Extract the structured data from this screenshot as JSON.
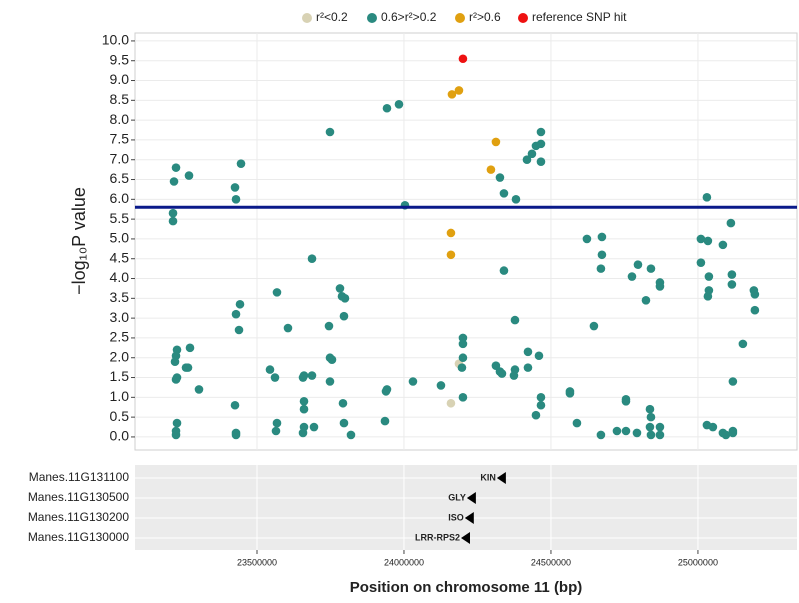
{
  "chart_data": {
    "type": "scatter",
    "x_label": "Position on chromosome 11 (bp)",
    "y_label": "−log₁₀P value",
    "xlim": [
      23085000,
      25337000
    ],
    "ylim": [
      -0.33,
      10.2
    ],
    "xticks": [
      23500000,
      24000000,
      24500000,
      25000000
    ],
    "yticks": [
      {
        "value": 0,
        "label": "0.0"
      },
      0.5,
      {
        "value": 1,
        "label": "1.0"
      },
      1.5,
      {
        "value": 2,
        "label": "2.0"
      },
      2.5,
      {
        "value": 3,
        "label": "3.0"
      },
      3.5,
      {
        "value": 4,
        "label": "4.0"
      },
      4.5,
      {
        "value": 5,
        "label": "5.0"
      },
      5.5,
      {
        "value": 6,
        "label": "6.0"
      },
      6.5,
      {
        "value": 7,
        "label": "7.0"
      },
      7.5,
      {
        "value": 8,
        "label": "8.0"
      },
      8.5,
      {
        "value": 9,
        "label": "9.0"
      },
      9.5,
      {
        "value": 10,
        "label": "10.0"
      }
    ],
    "grid": true,
    "legend": "top",
    "threshold": 5.8,
    "threshold_color": "#0a1a8a",
    "series": [
      {
        "name": "r²<0.2",
        "color": "#d8d2b4",
        "x": [
          24159800,
          24187000
        ],
        "values": [
          0.85,
          1.85
        ]
      },
      {
        "name": "0.6>r²>0.2",
        "color": "#2a8a80",
        "x": [
          23217700,
          23224500,
          23268700,
          23214300,
          23214300,
          23227900,
          23224500,
          23221100,
          23227900,
          23224500,
          23272100,
          23258500,
          23265300,
          23302700,
          23227900,
          23224500,
          23224500,
          23425200,
          23428600,
          23445600,
          23442200,
          23428600,
          23438800,
          23425200,
          23428600,
          23428600,
          23568000,
          23605400,
          23544200,
          23561200,
          23568000,
          23564600,
          23659900,
          23656500,
          23659900,
          23659900,
          23659900,
          23656500,
          23687100,
          23687100,
          23693900,
          23748300,
          23782300,
          23789100,
          23799300,
          23795900,
          23744900,
          23748300,
          23755100,
          23748300,
          23792500,
          23795900,
          23819700,
          23942200,
          23983000,
          24003400,
          23938800,
          23942200,
          23935400,
          24030600,
          24125800,
          24200600,
          24200600,
          24200600,
          24197200,
          24200600,
          24326500,
          24340100,
          24381000,
          24340100,
          24377600,
          24312800,
          24326500,
          24333300,
          24377600,
          24374100,
          24421800,
          24421800,
          24459200,
          24418400,
          24435400,
          24449000,
          24466000,
          24466000,
          24466000,
          24466000,
          24466000,
          24449000,
          24564600,
          24564600,
          24588400,
          24622400,
          24673400,
          24673400,
          24670000,
          24646200,
          24670000,
          24796000,
          24775600,
          24840200,
          24823200,
          24870800,
          24870800,
          24755200,
          24755200,
          24724500,
          24755200,
          24792600,
          24836800,
          24840200,
          24836800,
          24840200,
          24870800,
          24870800,
          25030500,
          25010100,
          25033900,
          25010100,
          25037300,
          25037300,
          25033900,
          25084900,
          25112100,
          25115500,
          25115500,
          25190300,
          25193700,
          25193700,
          25152900,
          25118900,
          25030500,
          25050900,
          25084900,
          25095100,
          25118900,
          25118900
        ],
        "values": [
          6.45,
          6.8,
          6.6,
          5.65,
          5.45,
          2.2,
          2.05,
          1.9,
          1.5,
          1.45,
          2.25,
          1.75,
          1.75,
          1.2,
          0.35,
          0.15,
          0.05,
          6.3,
          6.0,
          6.9,
          3.35,
          3.1,
          2.7,
          0.8,
          0.1,
          0.05,
          3.65,
          2.75,
          1.7,
          1.5,
          0.35,
          0.15,
          1.55,
          1.5,
          0.9,
          0.7,
          0.25,
          0.1,
          4.5,
          1.55,
          0.25,
          7.7,
          3.75,
          3.55,
          3.5,
          3.05,
          2.8,
          2.0,
          1.95,
          1.4,
          0.85,
          0.35,
          0.05,
          8.3,
          8.4,
          5.85,
          1.15,
          1.2,
          0.4,
          1.4,
          1.3,
          2.5,
          2.35,
          2.0,
          1.75,
          1.0,
          6.55,
          6.15,
          6.0,
          4.2,
          2.95,
          1.8,
          1.65,
          1.6,
          1.7,
          1.55,
          2.15,
          1.75,
          2.05,
          7.0,
          7.15,
          7.35,
          7.4,
          7.7,
          6.95,
          1.0,
          0.8,
          0.55,
          1.15,
          1.1,
          0.35,
          5.0,
          5.05,
          4.6,
          4.25,
          2.8,
          0.05,
          4.35,
          4.05,
          4.25,
          3.45,
          3.9,
          3.8,
          0.95,
          0.9,
          0.15,
          0.15,
          0.1,
          0.7,
          0.5,
          0.25,
          0.05,
          0.25,
          0.05,
          6.05,
          5.0,
          4.95,
          4.4,
          4.05,
          3.7,
          3.55,
          4.85,
          5.4,
          4.1,
          3.85,
          3.7,
          3.6,
          3.2,
          2.35,
          1.4,
          0.3,
          0.25,
          0.1,
          0.05,
          0.15,
          0.1
        ]
      },
      {
        "name": "r²>0.6",
        "color": "#e0a010",
        "x": [
          24163200,
          24187000,
          24159800,
          24159800,
          24312800,
          24295800
        ],
        "values": [
          8.65,
          8.75,
          5.15,
          4.6,
          7.45,
          6.75
        ]
      },
      {
        "name": "reference SNP hit",
        "color": "#ee1111",
        "x": [
          24200600
        ],
        "values": [
          9.55
        ]
      }
    ],
    "genes": [
      {
        "name": "Manes.11G131100",
        "label": "KIN",
        "x": 24316000
      },
      {
        "name": "Manes.11G130500",
        "label": "GLY",
        "x": 24214000
      },
      {
        "name": "Manes.11G130200",
        "label": "ISO",
        "x": 24207000
      },
      {
        "name": "Manes.11G130000",
        "label": "LRR-RPS2",
        "x": 24194000
      }
    ]
  }
}
